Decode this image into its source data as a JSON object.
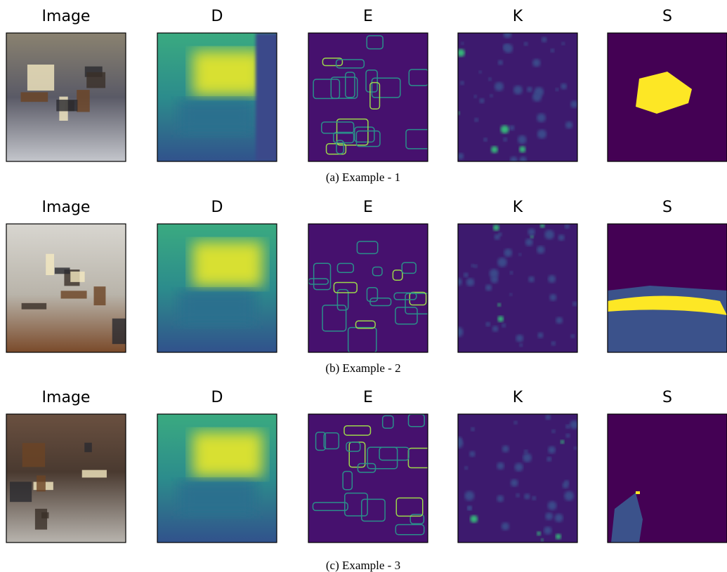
{
  "rows": [
    {
      "titles": [
        "Image",
        "D",
        "E",
        "K",
        "S"
      ],
      "caption": "(a) Example - 1"
    },
    {
      "titles": [
        "Image",
        "D",
        "E",
        "K",
        "S"
      ],
      "caption": "(b) Example - 2"
    },
    {
      "titles": [
        "Image",
        "D",
        "E",
        "K",
        "S"
      ],
      "caption": "(c) Example - 3"
    }
  ]
}
